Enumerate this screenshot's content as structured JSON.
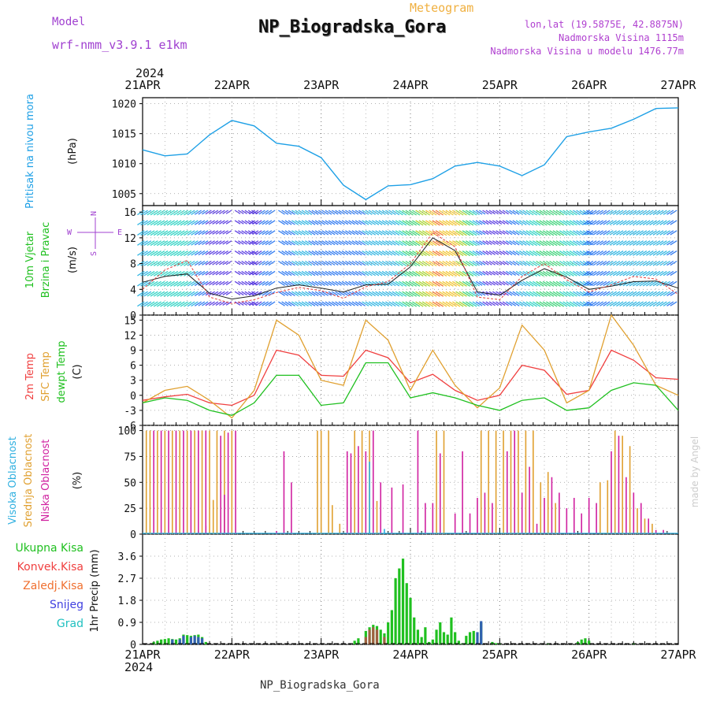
{
  "header": {
    "model_label": "Model",
    "model_name": "wrf-nmm_v3.9.1 e1km",
    "product": "Meteogram",
    "station": "NP_Biogradska_Gora",
    "coords": "lon,lat (19.5875E, 42.8875N)",
    "elevation": "Nadmorska Visina 1115m",
    "model_elevation": "Nadmorska Visina u modelu 1476.77m",
    "year_top": "2024",
    "year_bottom": "2024",
    "footer_station": "NP_Biogradska_Gora",
    "credit": "made by Angel"
  },
  "colors": {
    "pressure": "#1ea0e6",
    "temp2m": "#f04040",
    "sfc_temp": "#e0a030",
    "dewpoint": "#20c020",
    "high_cloud": "#30b0e0",
    "mid_cloud": "#e0a030",
    "low_cloud": "#d020a0",
    "total_precip": "#20c020",
    "conv_precip": "#f04040",
    "frozen_precip": "#f07030",
    "snow": "#4040e0",
    "graupel": "#20c0c0",
    "model_text": "#a040d0",
    "meteogram_text": "#f0b040",
    "grid": "#999999"
  },
  "chart_data": [
    {
      "type": "line",
      "panel": "pressure",
      "ylabel": "(hPa)",
      "side_labels": [
        "Pritisak na nivou mora"
      ],
      "ylim": [
        1003,
        1021
      ],
      "yticks": [
        1005,
        1010,
        1015,
        1020
      ],
      "x": [
        0,
        6,
        12,
        18,
        24,
        30,
        36,
        42,
        48,
        54,
        60,
        66,
        72,
        78,
        84,
        90,
        96,
        102,
        108,
        114,
        120,
        126,
        132,
        138,
        144
      ],
      "xtick_labels": [
        "21APR",
        "22APR",
        "23APR",
        "24APR",
        "25APR",
        "26APR",
        "27APR"
      ],
      "series": [
        {
          "values": [
            1012.3,
            1011.3,
            1011.6,
            1014.8,
            1017.2,
            1016.3,
            1013.4,
            1012.9,
            1011.0,
            1006.4,
            1004.0,
            1006.3,
            1006.5,
            1007.5,
            1009.6,
            1010.2,
            1009.6,
            1008.0,
            1009.8,
            1014.5,
            1015.3,
            1015.9,
            1017.4,
            1019.2,
            1019.3
          ]
        }
      ]
    },
    {
      "type": "line",
      "panel": "wind",
      "ylabel": "(m/s)",
      "side_labels": [
        "10m Vjetar",
        "Brzina i Pravac"
      ],
      "compass": [
        "N",
        "E",
        "S",
        "W"
      ],
      "ylim": [
        0,
        17
      ],
      "yticks": [
        0,
        4,
        8,
        12,
        16
      ],
      "x": [
        0,
        6,
        12,
        18,
        24,
        30,
        36,
        42,
        48,
        54,
        60,
        66,
        72,
        78,
        84,
        90,
        96,
        102,
        108,
        114,
        120,
        126,
        132,
        138,
        144
      ],
      "series": [
        {
          "name": "speed",
          "values": [
            5.1,
            6.0,
            6.4,
            3.4,
            2.5,
            3.0,
            4.2,
            4.7,
            4.2,
            3.6,
            4.7,
            4.8,
            7.5,
            12.0,
            10.0,
            3.6,
            3.1,
            5.4,
            7.2,
            5.9,
            4.0,
            4.5,
            5.2,
            5.3,
            4.2
          ]
        },
        {
          "name": "gust",
          "values": [
            4.0,
            7.0,
            8.5,
            2.8,
            1.8,
            2.4,
            3.5,
            4.3,
            3.8,
            2.6,
            4.4,
            5.2,
            8.0,
            12.8,
            10.6,
            2.8,
            2.4,
            6.0,
            8.0,
            5.5,
            3.6,
            4.7,
            6.0,
            5.6,
            3.2
          ]
        }
      ]
    },
    {
      "type": "line",
      "panel": "temperature",
      "ylabel": "(C)",
      "side_labels": [
        "2m Temp",
        "SFC Temp",
        "dewpt Temp"
      ],
      "ylim": [
        -6,
        16
      ],
      "yticks": [
        -6,
        -3,
        0,
        3,
        6,
        9,
        12,
        15
      ],
      "x": [
        0,
        6,
        12,
        18,
        24,
        30,
        36,
        42,
        48,
        54,
        60,
        66,
        72,
        78,
        84,
        90,
        96,
        102,
        108,
        114,
        120,
        126,
        132,
        138,
        144
      ],
      "series": [
        {
          "name": "2m Temp",
          "values": [
            -1.0,
            -0.3,
            0.2,
            -1.5,
            -2.0,
            0.0,
            9.0,
            8.0,
            4.0,
            3.8,
            9.0,
            7.5,
            2.5,
            4.2,
            1.0,
            -1.0,
            0.0,
            6.0,
            5.0,
            0.2,
            1.0,
            9.0,
            7.0,
            3.5,
            3.2
          ]
        },
        {
          "name": "SFC Temp",
          "values": [
            -1.5,
            1.0,
            1.8,
            -1.0,
            -4.5,
            1.0,
            15.0,
            12.0,
            3.0,
            2.0,
            15.0,
            11.0,
            1.0,
            9.0,
            2.0,
            -2.5,
            1.5,
            14.0,
            9.0,
            -1.5,
            1.0,
            16.0,
            10.0,
            2.0,
            0.0
          ]
        },
        {
          "name": "dewpt Temp",
          "values": [
            -1.5,
            -0.5,
            -1.0,
            -3.0,
            -4.0,
            -1.5,
            4.0,
            4.0,
            -2.0,
            -1.5,
            6.5,
            6.5,
            -0.5,
            0.5,
            -0.5,
            -2.0,
            -3.0,
            -1.0,
            -0.5,
            -3.0,
            -2.5,
            1.0,
            2.5,
            2.0,
            -3.0
          ]
        }
      ]
    },
    {
      "type": "bar",
      "panel": "cloud",
      "ylabel": "(%)",
      "side_labels": [
        "Visoka Oblacnost",
        "Srednja Oblacnost",
        "Niska Oblacnost"
      ],
      "ylim": [
        0,
        105
      ],
      "yticks": [
        0,
        25,
        50,
        75,
        100
      ],
      "series": [
        {
          "name": "Srednja Oblacnost",
          "points": [
            [
              1,
              100
            ],
            [
              2,
              100
            ],
            [
              4,
              100
            ],
            [
              6,
              100
            ],
            [
              8,
              100
            ],
            [
              10,
              100
            ],
            [
              12,
              100
            ],
            [
              14,
              100
            ],
            [
              16,
              100
            ],
            [
              18,
              100
            ],
            [
              20,
              100
            ],
            [
              22,
              100
            ],
            [
              24,
              100
            ],
            [
              19,
              33
            ],
            [
              47,
              100
            ],
            [
              48,
              100
            ],
            [
              50,
              100
            ],
            [
              51,
              28
            ],
            [
              53,
              10
            ],
            [
              57,
              100
            ],
            [
              59,
              100
            ],
            [
              61,
              100
            ],
            [
              63,
              32
            ],
            [
              79,
              100
            ],
            [
              81,
              100
            ],
            [
              91,
              100
            ],
            [
              93,
              100
            ],
            [
              95,
              100
            ],
            [
              97,
              100
            ],
            [
              99,
              100
            ],
            [
              101,
              100
            ],
            [
              103,
              100
            ],
            [
              105,
              100
            ],
            [
              107,
              50
            ],
            [
              109,
              60
            ],
            [
              111,
              30
            ],
            [
              123,
              50
            ],
            [
              125,
              52
            ],
            [
              127,
              100
            ],
            [
              129,
              95
            ],
            [
              131,
              85
            ],
            [
              133,
              25
            ],
            [
              135,
              15
            ],
            [
              137,
              10
            ]
          ]
        },
        {
          "name": "Niska Oblacnost",
          "points": [
            [
              3,
              100
            ],
            [
              5,
              100
            ],
            [
              7,
              100
            ],
            [
              9,
              100
            ],
            [
              11,
              100
            ],
            [
              13,
              100
            ],
            [
              15,
              100
            ],
            [
              17,
              100
            ],
            [
              21,
              95
            ],
            [
              23,
              98
            ],
            [
              25,
              100
            ],
            [
              17,
              8
            ],
            [
              22,
              38
            ],
            [
              36,
              3
            ],
            [
              38,
              80
            ],
            [
              40,
              50
            ],
            [
              55,
              80
            ],
            [
              56,
              78
            ],
            [
              58,
              85
            ],
            [
              60,
              80
            ],
            [
              62,
              100
            ],
            [
              64,
              50
            ],
            [
              67,
              45
            ],
            [
              70,
              48
            ],
            [
              74,
              100
            ],
            [
              76,
              30
            ],
            [
              78,
              30
            ],
            [
              80,
              78
            ],
            [
              84,
              20
            ],
            [
              86,
              80
            ],
            [
              88,
              20
            ],
            [
              90,
              35
            ],
            [
              92,
              40
            ],
            [
              94,
              30
            ],
            [
              98,
              80
            ],
            [
              100,
              100
            ],
            [
              102,
              40
            ],
            [
              104,
              65
            ],
            [
              106,
              10
            ],
            [
              108,
              35
            ],
            [
              110,
              55
            ],
            [
              112,
              40
            ],
            [
              114,
              25
            ],
            [
              116,
              35
            ],
            [
              118,
              20
            ],
            [
              120,
              35
            ],
            [
              122,
              30
            ],
            [
              126,
              80
            ],
            [
              128,
              95
            ],
            [
              130,
              55
            ],
            [
              132,
              40
            ],
            [
              134,
              30
            ],
            [
              136,
              15
            ],
            [
              138,
              4
            ],
            [
              140,
              4
            ]
          ]
        },
        {
          "name": "Visoka Oblacnost",
          "points": [
            [
              61,
              70
            ],
            [
              65,
              5
            ]
          ]
        }
      ]
    },
    {
      "type": "bar",
      "panel": "precipitation",
      "ylabel": "1hr Precip (mm)",
      "side_labels": [
        "Ukupna Kisa",
        "Konvek.Kisa",
        "Zaledj.Kisa",
        "Snijeg",
        "Grad"
      ],
      "ylim": [
        0,
        4.5
      ],
      "yticks": [
        0,
        0.9,
        1.8,
        2.7,
        3.6
      ],
      "xtick_labels": [
        "21APR",
        "22APR",
        "23APR",
        "24APR",
        "25APR",
        "26APR",
        "27APR"
      ],
      "series": [
        {
          "name": "Ukupna Kisa",
          "points": [
            [
              3,
              0.1
            ],
            [
              4,
              0.15
            ],
            [
              5,
              0.2
            ],
            [
              6,
              0.22
            ],
            [
              7,
              0.25
            ],
            [
              8,
              0.22
            ],
            [
              9,
              0.2
            ],
            [
              10,
              0.25
            ],
            [
              11,
              0.4
            ],
            [
              12,
              0.38
            ],
            [
              13,
              0.35
            ],
            [
              14,
              0.38
            ],
            [
              15,
              0.4
            ],
            [
              16,
              0.3
            ],
            [
              17,
              0.1
            ],
            [
              57,
              0.15
            ],
            [
              58,
              0.25
            ],
            [
              60,
              0.55
            ],
            [
              61,
              0.7
            ],
            [
              62,
              0.8
            ],
            [
              63,
              0.75
            ],
            [
              64,
              0.6
            ],
            [
              65,
              0.45
            ],
            [
              66,
              0.9
            ],
            [
              67,
              1.4
            ],
            [
              68,
              2.7
            ],
            [
              69,
              3.1
            ],
            [
              70,
              3.5
            ],
            [
              71,
              2.5
            ],
            [
              72,
              1.9
            ],
            [
              73,
              1.1
            ],
            [
              74,
              0.6
            ],
            [
              75,
              0.3
            ],
            [
              76,
              0.7
            ],
            [
              77,
              0.1
            ],
            [
              78,
              0.2
            ],
            [
              79,
              0.6
            ],
            [
              80,
              0.9
            ],
            [
              81,
              0.5
            ],
            [
              82,
              0.4
            ],
            [
              83,
              1.1
            ],
            [
              84,
              0.5
            ],
            [
              85,
              0.15
            ],
            [
              86,
              0.05
            ],
            [
              87,
              0.35
            ],
            [
              88,
              0.5
            ],
            [
              89,
              0.55
            ],
            [
              91,
              0.9
            ],
            [
              94,
              0.1
            ],
            [
              95,
              0.05
            ],
            [
              96,
              0.05
            ],
            [
              109,
              0.02
            ],
            [
              117,
              0.1
            ],
            [
              118,
              0.2
            ],
            [
              119,
              0.25
            ],
            [
              120,
              0.15
            ],
            [
              132,
              0.05
            ]
          ]
        },
        {
          "name": "Konvek.Kisa",
          "points": [
            [
              60,
              0.3
            ],
            [
              61,
              0.6
            ],
            [
              62,
              0.7
            ],
            [
              63,
              0.6
            ],
            [
              65,
              0.3
            ]
          ]
        },
        {
          "name": "Snijeg",
          "points": [
            [
              8,
              0.2
            ],
            [
              10,
              0.2
            ],
            [
              11,
              0.35
            ],
            [
              13,
              0.3
            ],
            [
              14,
              0.35
            ],
            [
              15,
              0.3
            ],
            [
              16,
              0.25
            ],
            [
              90,
              0.5
            ],
            [
              91,
              0.95
            ]
          ]
        }
      ]
    }
  ]
}
